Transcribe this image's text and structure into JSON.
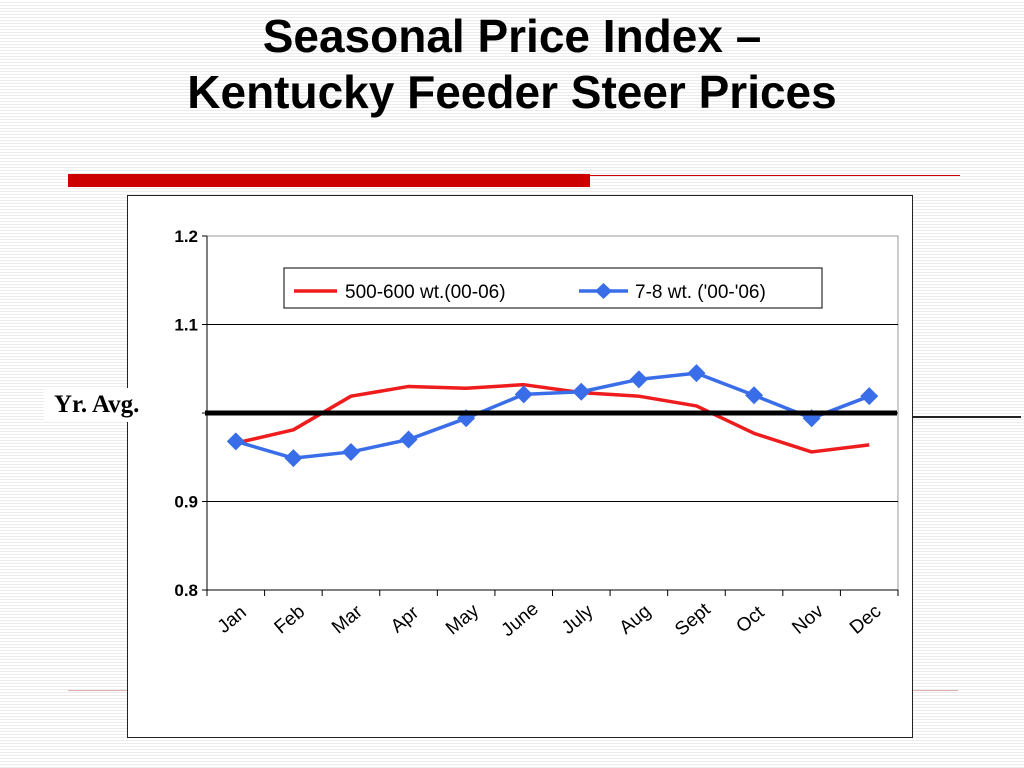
{
  "slide": {
    "title_line1": "Seasonal Price Index –",
    "title_line2": "Kentucky Feeder Steer Prices",
    "avg_label": "Yr. Avg."
  },
  "colors": {
    "series1": "#ee1c1c",
    "series2": "#3a6ee8",
    "avg_line": "#000000",
    "accent_rule": "#cc0000"
  },
  "chart_data": {
    "type": "line",
    "categories": [
      "Jan",
      "Feb",
      "Mar",
      "Apr",
      "May",
      "June",
      "July",
      "Aug",
      "Sept",
      "Oct",
      "Nov",
      "Dec"
    ],
    "series": [
      {
        "name": "500-600 wt.(00-06)",
        "values": [
          0.966,
          0.981,
          1.019,
          1.03,
          1.028,
          1.032,
          1.023,
          1.019,
          1.008,
          0.977,
          0.956,
          0.964
        ]
      },
      {
        "name": "7-8 wt. ('00-'06)",
        "values": [
          0.968,
          0.949,
          0.956,
          0.97,
          0.994,
          1.021,
          1.024,
          1.038,
          1.045,
          1.02,
          0.994,
          1.019
        ]
      }
    ],
    "reference_line": {
      "value": 1.0,
      "label": "Yr. Avg."
    },
    "yticks": [
      "1.2",
      "1.1",
      "",
      "0.9",
      "0.8"
    ],
    "ylim": [
      0.8,
      1.2
    ],
    "grid": "horizontal",
    "legend": "top-center"
  }
}
